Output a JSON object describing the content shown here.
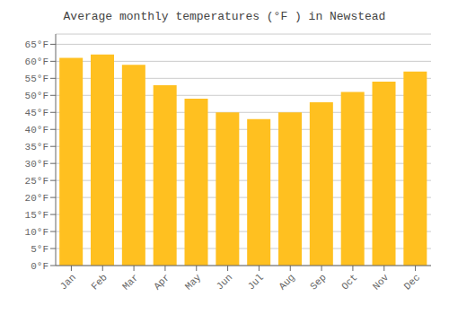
{
  "chart_data": {
    "type": "bar",
    "title": "Average monthly temperatures (°F ) in Newstead",
    "categories": [
      "Jan",
      "Feb",
      "Mar",
      "Apr",
      "May",
      "Jun",
      "Jul",
      "Aug",
      "Sep",
      "Oct",
      "Nov",
      "Dec"
    ],
    "values": [
      61,
      62,
      59,
      53,
      49,
      45,
      43,
      45,
      48,
      51,
      54,
      57
    ],
    "color": "#FFC020",
    "ylim": [
      0,
      68
    ],
    "yticks": [
      {
        "value": 0,
        "label": "0°F"
      },
      {
        "value": 5,
        "label": "5°F"
      },
      {
        "value": 10,
        "label": "10°F"
      },
      {
        "value": 15,
        "label": "15°F"
      },
      {
        "value": 20,
        "label": "20°F"
      },
      {
        "value": 25,
        "label": "25°F"
      },
      {
        "value": 30,
        "label": "30°F"
      },
      {
        "value": 35,
        "label": "35°F"
      },
      {
        "value": 40,
        "label": "40°F"
      },
      {
        "value": 45,
        "label": "45°F"
      },
      {
        "value": 50,
        "label": "50°F"
      },
      {
        "value": 55,
        "label": "55°F"
      },
      {
        "value": 60,
        "label": "60°F"
      },
      {
        "value": 65,
        "label": "65°F"
      }
    ],
    "grid": true
  }
}
